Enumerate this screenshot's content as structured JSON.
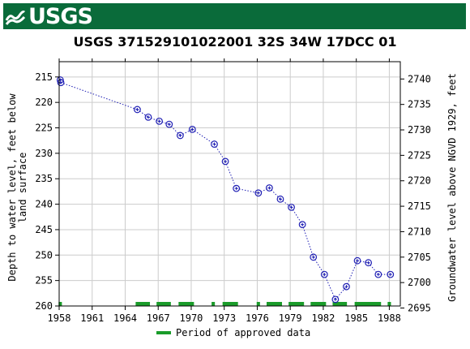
{
  "header": {
    "logo_text": "USGS"
  },
  "chart_data": {
    "type": "scatter",
    "title": "USGS 371529101022001 32S 34W 17DCC 01",
    "ylabel_left": "Depth to water level, feet below land surface",
    "ylabel_right": "Groundwater level above NGVD 1929, feet",
    "xlim": [
      1958,
      1989
    ],
    "ylim_left": [
      212,
      260
    ],
    "ylim_right": [
      2743.4,
      2695.4
    ],
    "x_ticks": [
      1958,
      1961,
      1964,
      1967,
      1970,
      1973,
      1976,
      1979,
      1982,
      1985,
      1988
    ],
    "y_ticks_left": [
      215,
      220,
      225,
      230,
      235,
      240,
      245,
      250,
      255,
      260
    ],
    "y_ticks_right": [
      2740,
      2735,
      2730,
      2725,
      2720,
      2715,
      2710,
      2705,
      2700,
      2695
    ],
    "series": [
      {
        "points": [
          [
            1958.1,
            215.6
          ],
          [
            1958.15,
            216.1
          ],
          [
            1965.1,
            221.4
          ],
          [
            1966.1,
            222.9
          ],
          [
            1967.1,
            223.7
          ],
          [
            1968.0,
            224.3
          ],
          [
            1969.0,
            226.5
          ],
          [
            1970.1,
            225.3
          ],
          [
            1972.1,
            228.2
          ],
          [
            1973.1,
            231.6
          ],
          [
            1974.1,
            236.9
          ],
          [
            1976.1,
            237.8
          ],
          [
            1977.1,
            236.8
          ],
          [
            1978.1,
            239.0
          ],
          [
            1979.1,
            240.6
          ],
          [
            1980.1,
            244.0
          ],
          [
            1981.1,
            250.4
          ],
          [
            1982.1,
            253.8
          ],
          [
            1983.1,
            258.7
          ],
          [
            1984.1,
            256.2
          ],
          [
            1985.1,
            251.1
          ],
          [
            1986.1,
            251.5
          ],
          [
            1987.0,
            253.8
          ],
          [
            1988.1,
            253.8
          ]
        ],
        "connected_from_index": 1,
        "color": "#1f1fb4"
      }
    ],
    "approved_periods": [
      [
        1957.95,
        1958.25
      ],
      [
        1964.95,
        1966.25
      ],
      [
        1966.85,
        1968.15
      ],
      [
        1968.85,
        1970.25
      ],
      [
        1971.85,
        1972.15
      ],
      [
        1972.85,
        1974.25
      ],
      [
        1975.95,
        1976.25
      ],
      [
        1976.85,
        1978.25
      ],
      [
        1978.85,
        1980.25
      ],
      [
        1980.85,
        1982.25
      ],
      [
        1982.85,
        1984.15
      ],
      [
        1984.85,
        1987.25
      ],
      [
        1987.85,
        1988.15
      ]
    ],
    "approved_color": "#1a9c2a",
    "legend": {
      "label": "Period of approved data",
      "placement": "bottom-center"
    },
    "grid": true
  },
  "colors": {
    "header_bg": "#0a6b3a",
    "point": "#1f1fb4",
    "approved": "#1a9c2a",
    "grid": "#cccccc"
  }
}
